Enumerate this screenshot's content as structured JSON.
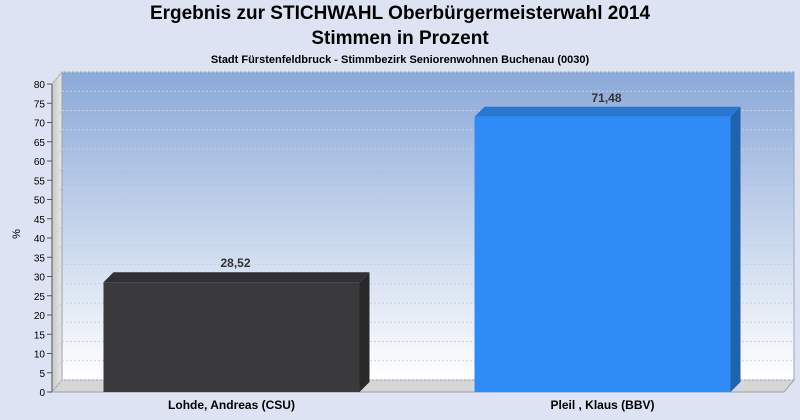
{
  "chart_data": {
    "type": "bar",
    "title": "Ergebnis zur STICHWAHL Oberbürgermeisterwahl 2014",
    "subtitle": "Stimmen in Prozent",
    "subtitle2": "Stadt Fürstenfeldbruck - Stimmbezirk Seniorenwohnen Buchenau (0030)",
    "ylabel": "%",
    "xlabel": "",
    "categories": [
      "Lohde, Andreas (CSU)",
      "Pleil , Klaus (BBV)"
    ],
    "values": [
      28.52,
      71.48
    ],
    "value_labels": [
      "28,52",
      "71,48"
    ],
    "colors": [
      "#3a3a3c",
      "#2f8cf6"
    ],
    "ylim": [
      0,
      80
    ],
    "yticks": [
      0,
      5,
      10,
      15,
      20,
      25,
      30,
      35,
      40,
      45,
      50,
      55,
      60,
      65,
      70,
      75,
      80
    ],
    "grid": true,
    "legend": "none"
  }
}
